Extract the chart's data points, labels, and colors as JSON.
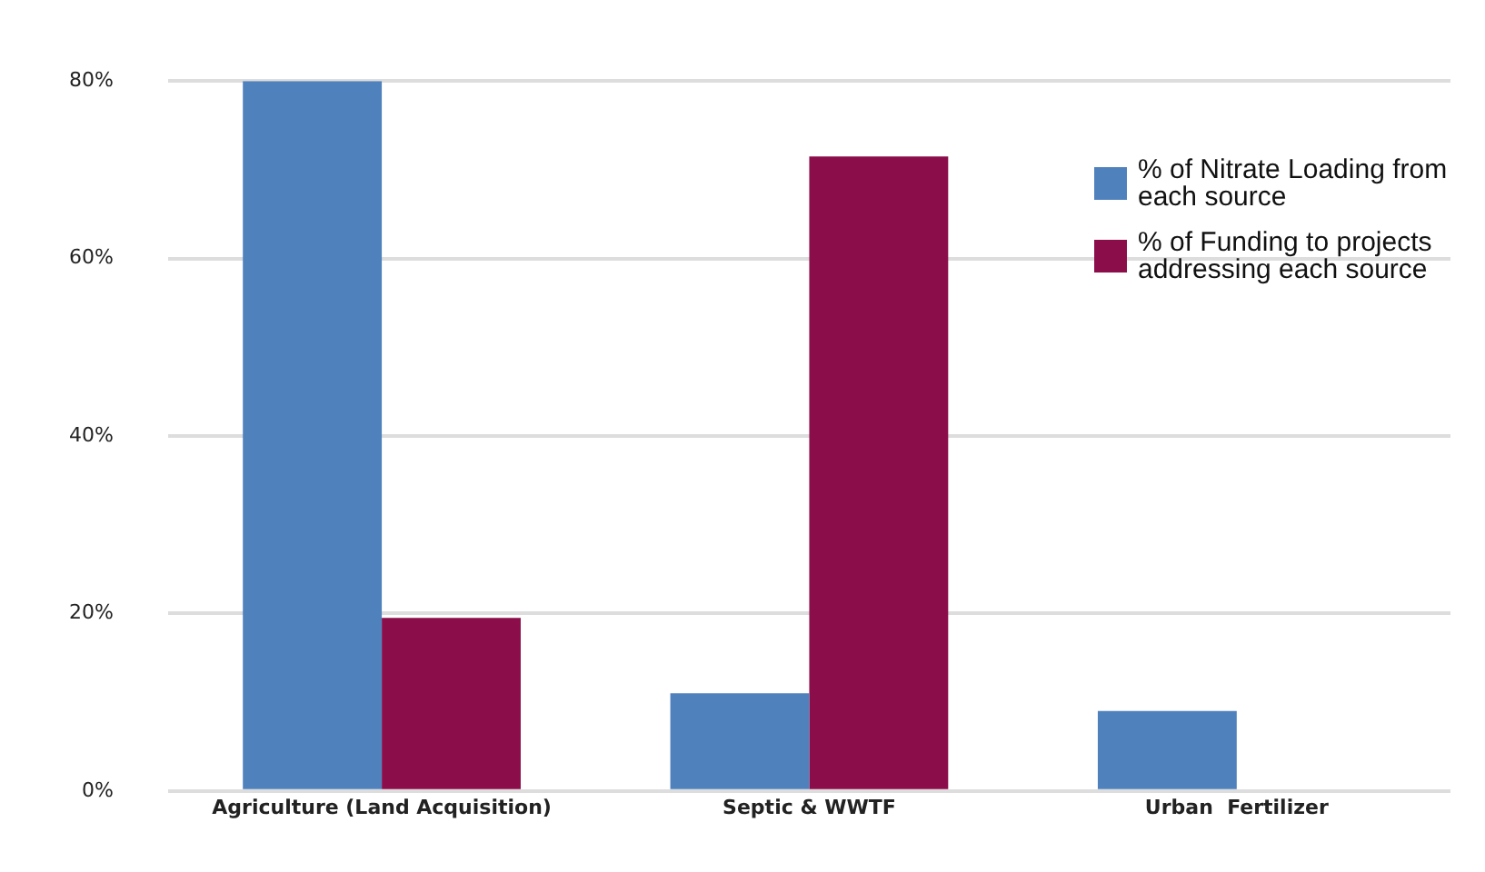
{
  "chart_data": {
    "type": "bar",
    "categories": [
      "Agriculture (Land Acquisition)",
      "Septic & WWTF",
      "Urban  Fertilizer"
    ],
    "series": [
      {
        "name": "% of Nitrate Loading from each source",
        "color": "#4f81bd",
        "values": [
          80,
          11,
          9
        ]
      },
      {
        "name": "% of Funding to projects addressing each source",
        "color": "#8b0e4a",
        "values": [
          19.5,
          71.5,
          0
        ]
      }
    ],
    "ylim": [
      0,
      80
    ],
    "yticks": [
      {
        "value": 0,
        "label": "0%"
      },
      {
        "value": 20,
        "label": "20%"
      },
      {
        "value": 40,
        "label": "40%"
      },
      {
        "value": 60,
        "label": "60%"
      },
      {
        "value": 80,
        "label": "80%"
      }
    ],
    "grid": "y",
    "legend": "top right"
  }
}
